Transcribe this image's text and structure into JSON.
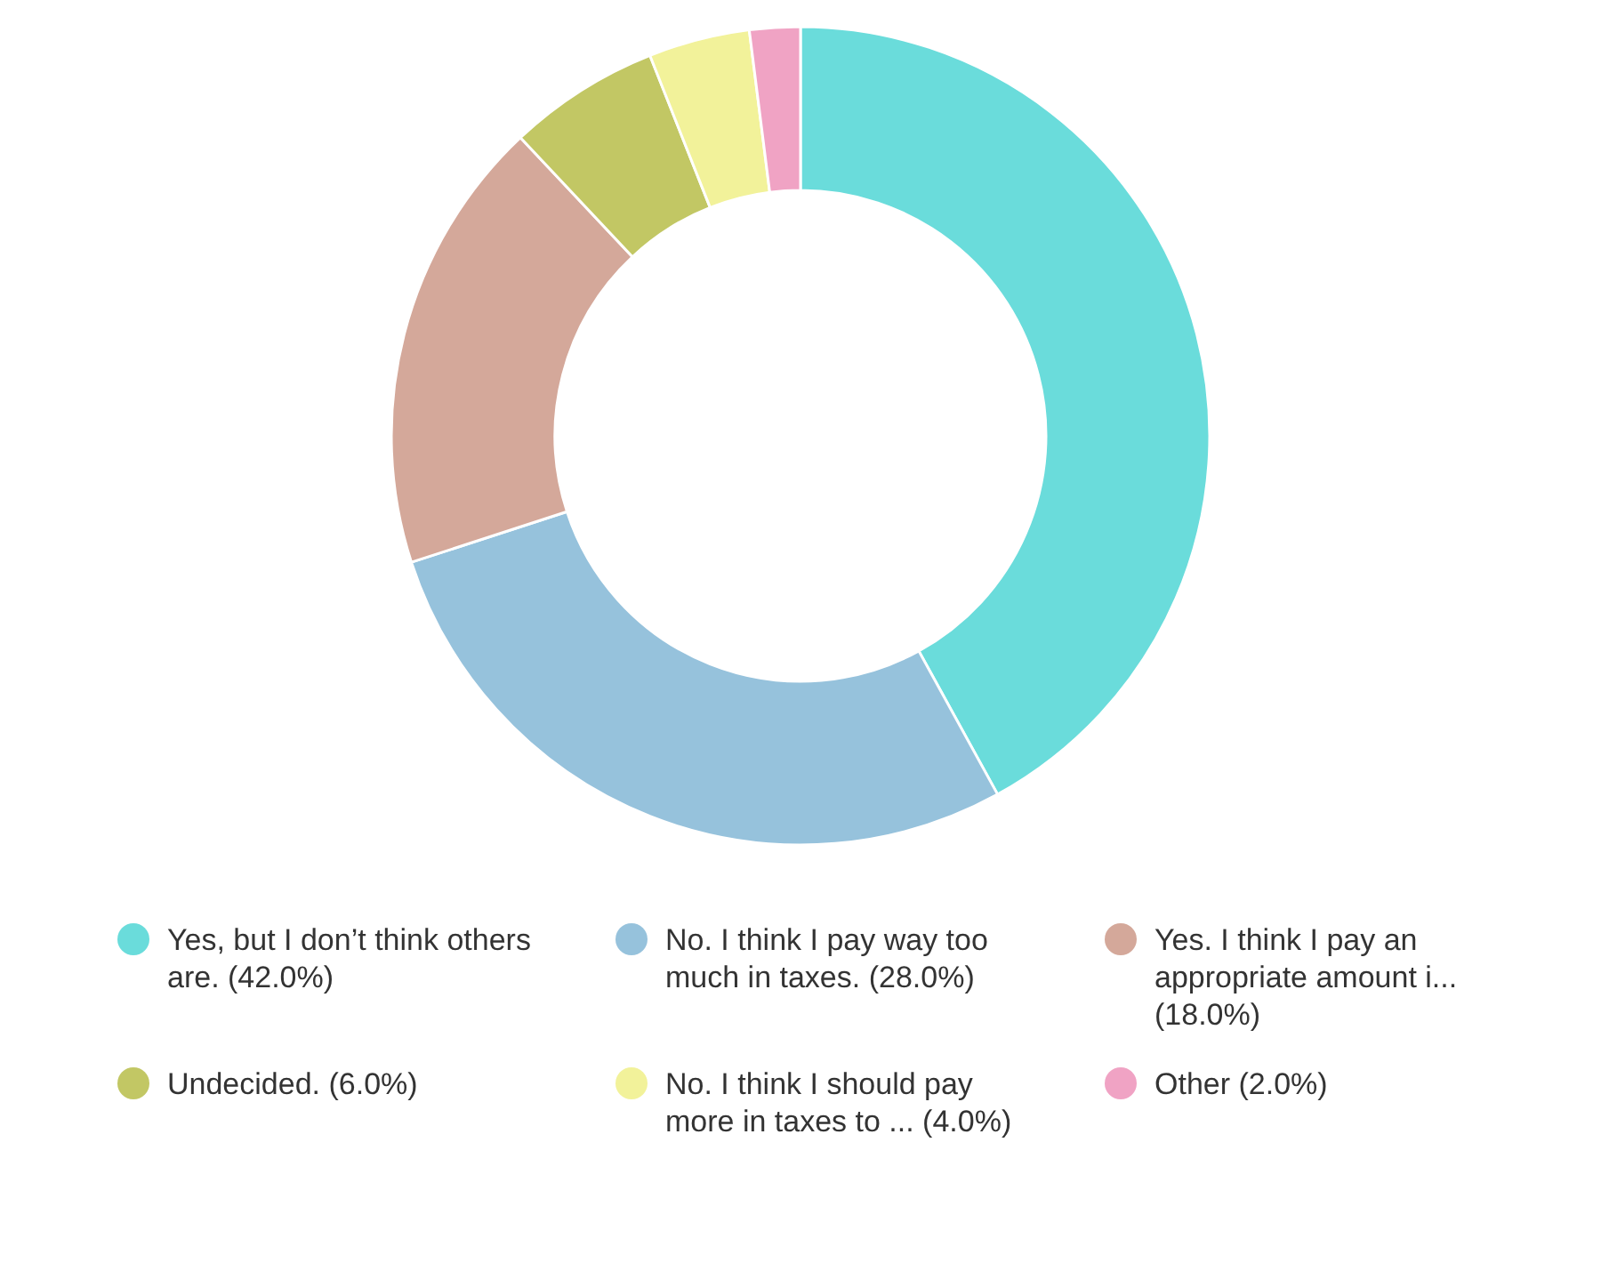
{
  "chart_data": {
    "type": "donut",
    "categories": [
      "Yes, but I don’t think others are. (42.0%)",
      "No. I think I pay way too much in taxes. (28.0%)",
      "Yes. I think I pay an appropriate amount i... (18.0%)",
      "Undecided. (6.0%)",
      "No. I think I should pay more in taxes to ... (4.0%)",
      "Other (2.0%)"
    ],
    "values": [
      42,
      28,
      18,
      6,
      4,
      2
    ],
    "colors": [
      "#6adcdb",
      "#96c2dc",
      "#d4a89a",
      "#c2c764",
      "#f2f29a",
      "#f0a3c4"
    ],
    "legend": "bottom"
  }
}
